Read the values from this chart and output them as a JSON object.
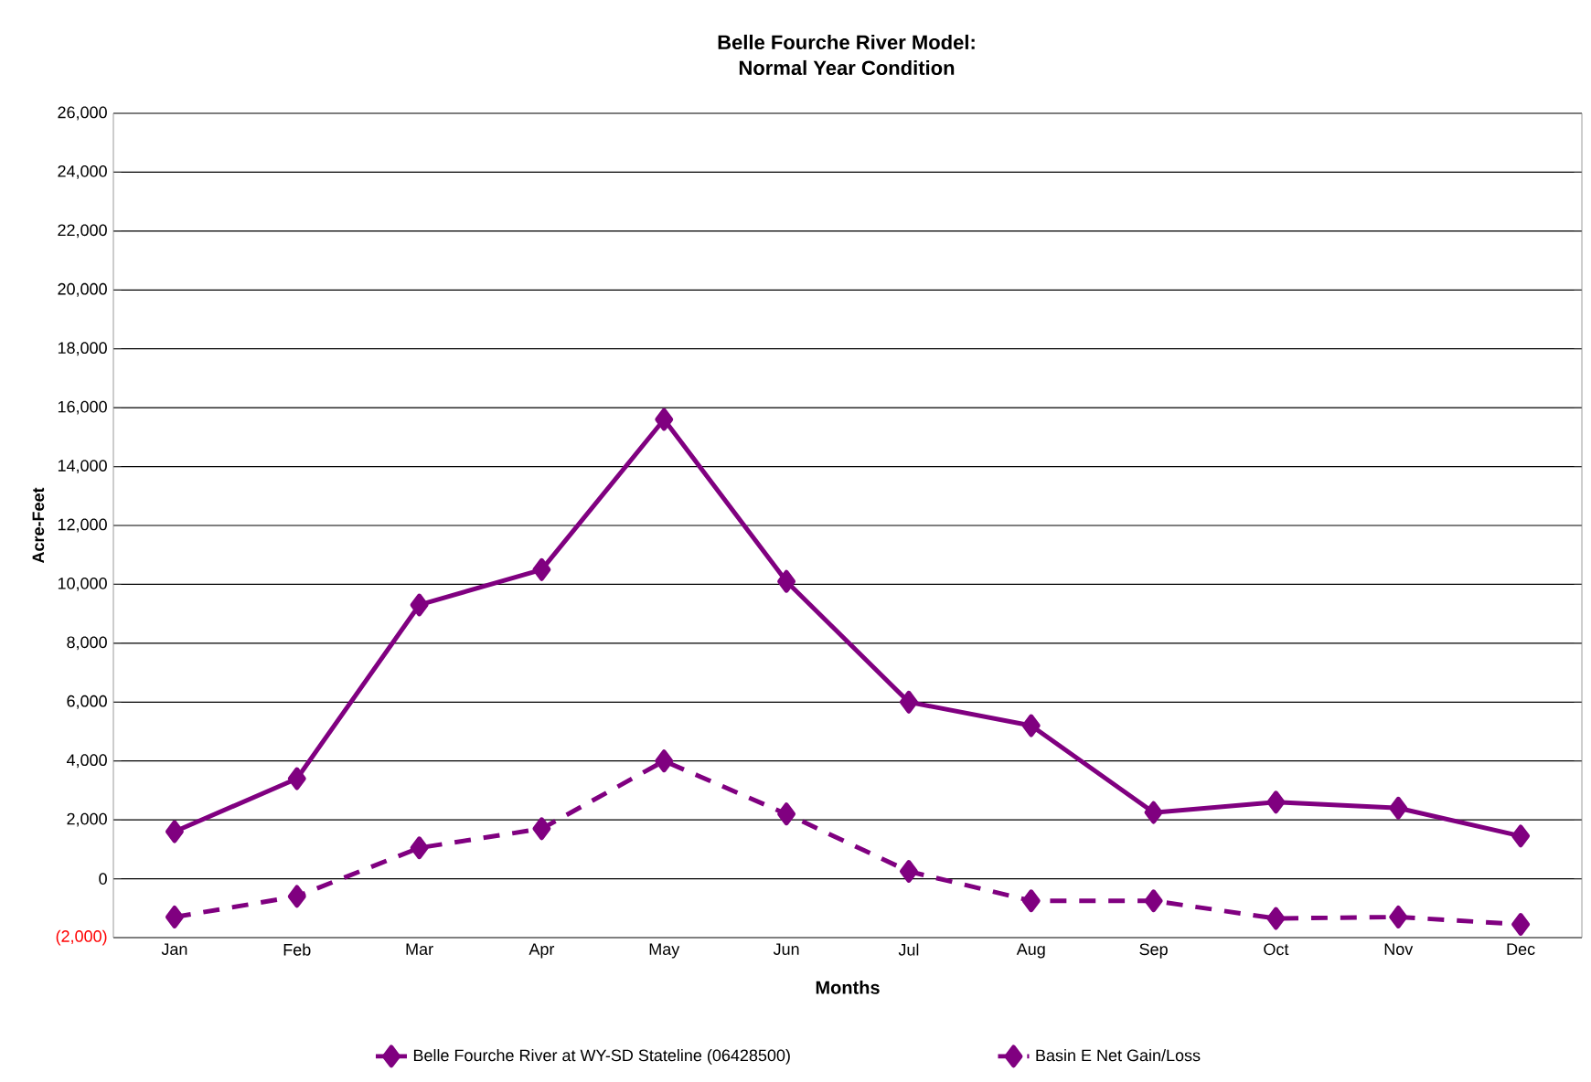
{
  "chart_data": {
    "type": "line",
    "title": "Belle Fourche River Model:\nNormal Year Condition",
    "xlabel": "Months",
    "ylabel": "Acre-Feet",
    "categories": [
      "Jan",
      "Feb",
      "Mar",
      "Apr",
      "May",
      "Jun",
      "Jul",
      "Aug",
      "Sep",
      "Oct",
      "Nov",
      "Dec"
    ],
    "series": [
      {
        "name": "Belle Fourche River at WY-SD Stateline (06428500)",
        "color": "#800080",
        "line_style": "solid",
        "values": [
          1600,
          3400,
          9300,
          10500,
          15600,
          10100,
          6000,
          5200,
          2250,
          2600,
          2400,
          1450
        ]
      },
      {
        "name": "Basin E Net Gain/Loss",
        "color": "#800080",
        "line_style": "dashed",
        "values": [
          -1300,
          -600,
          1050,
          1700,
          4000,
          2200,
          250,
          -750,
          -750,
          -1350,
          -1300,
          -1550
        ]
      }
    ],
    "ylim": [
      -2000,
      26000
    ],
    "yticks": [
      {
        "value": -2000,
        "label": "(2,000)"
      },
      {
        "value": 0,
        "label": "0"
      },
      {
        "value": 2000,
        "label": "2,000"
      },
      {
        "value": 4000,
        "label": "4,000"
      },
      {
        "value": 6000,
        "label": "6,000"
      },
      {
        "value": 8000,
        "label": "8,000"
      },
      {
        "value": 10000,
        "label": "10,000"
      },
      {
        "value": 12000,
        "label": "12,000"
      },
      {
        "value": 14000,
        "label": "14,000"
      },
      {
        "value": 16000,
        "label": "16,000"
      },
      {
        "value": 18000,
        "label": "18,000"
      },
      {
        "value": 20000,
        "label": "20,000"
      },
      {
        "value": 22000,
        "label": "22,000"
      },
      {
        "value": 24000,
        "label": "24,000"
      },
      {
        "value": 26000,
        "label": "26,000"
      }
    ],
    "grid": "y",
    "legend": "bottom",
    "marker": "diamond"
  }
}
